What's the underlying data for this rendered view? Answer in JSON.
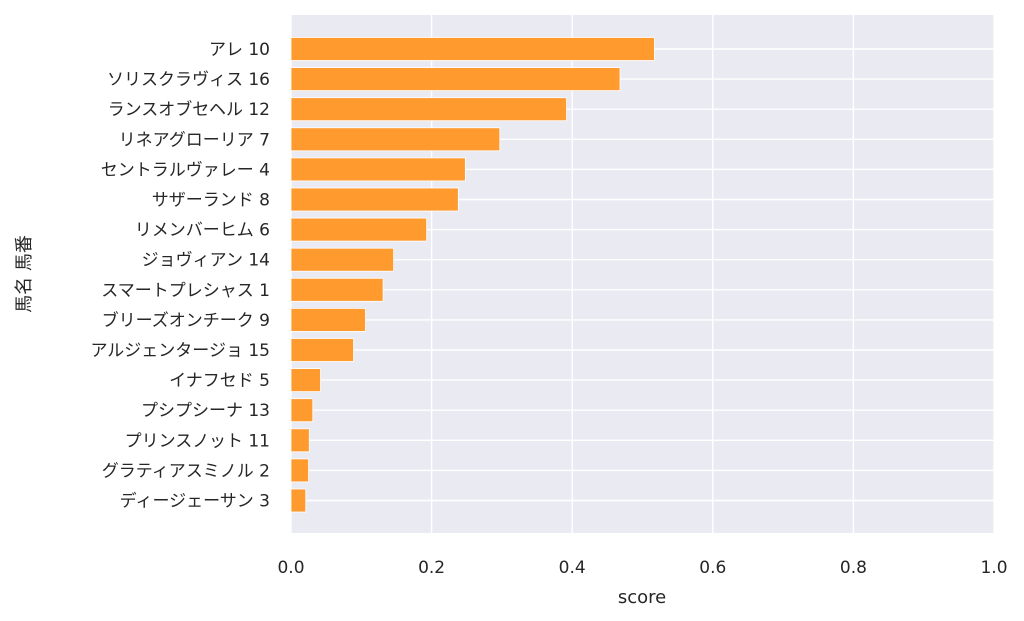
{
  "chart_data": {
    "type": "bar",
    "orientation": "horizontal",
    "xlabel": "score",
    "ylabel": "馬名 馬番",
    "xlim": [
      0.0,
      1.0
    ],
    "xticks": [
      "0.0",
      "0.2",
      "0.4",
      "0.6",
      "0.8",
      "1.0"
    ],
    "grid": true,
    "bar_color": "#ff9a2e",
    "background_color": "#eaeaf2",
    "categories": [
      "アレ 10",
      "ソリスクラヴィス 16",
      "ランスオブセヘル 12",
      "リネアグローリア 7",
      "セントラルヴァレー 4",
      "サザーランド 8",
      "リメンバーヒム 6",
      "ジョヴィアン 14",
      "スマートプレシャス 1",
      "ブリーズオンチーク 9",
      "アルジェンタージョ 15",
      "イナフセド 5",
      "プシプシーナ 13",
      "プリンスノット 11",
      "グラティアスミノル 2",
      "ディージェーサン 3"
    ],
    "values": [
      0.517,
      0.468,
      0.392,
      0.297,
      0.248,
      0.238,
      0.193,
      0.146,
      0.131,
      0.106,
      0.089,
      0.042,
      0.031,
      0.026,
      0.025,
      0.021
    ]
  }
}
